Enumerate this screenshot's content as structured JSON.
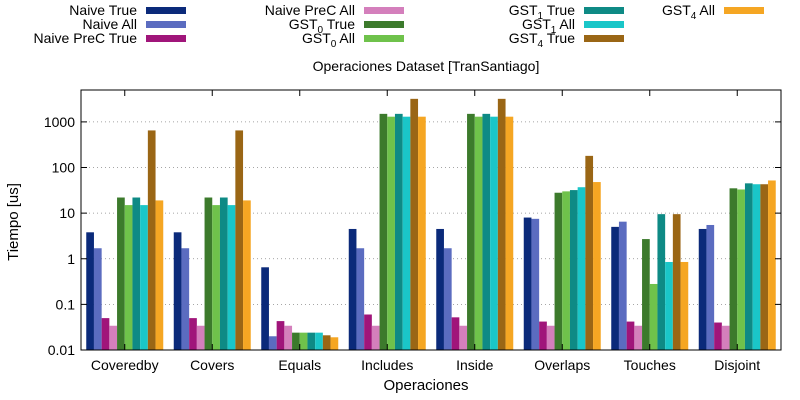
{
  "chart_data": {
    "type": "bar",
    "title": "Operaciones Dataset [TranSantiago]",
    "xlabel": "Operaciones",
    "ylabel": "Tiempo [us]",
    "yscale": "log",
    "ylim": [
      0.01,
      5000
    ],
    "grid": "horizontal dotted",
    "legend_position": "top",
    "categories": [
      "Coveredby",
      "Covers",
      "Equals",
      "Includes",
      "Inside",
      "Overlaps",
      "Touches",
      "Disjoint"
    ],
    "y_ticks": [
      0.01,
      0.1,
      1,
      10,
      100,
      1000
    ],
    "y_tick_labels": [
      "0.01",
      "0.1",
      "1",
      "10",
      "100",
      "1000"
    ],
    "series": [
      {
        "name": "Naive True",
        "label_main": "Naive True",
        "label_sub": "",
        "label_tail": "",
        "color": "#0b2a7a",
        "values": [
          3.8,
          3.8,
          0.65,
          4.5,
          4.5,
          8.0,
          5.0,
          4.5
        ]
      },
      {
        "name": "Naive All",
        "label_main": "Naive All",
        "label_sub": "",
        "label_tail": "",
        "color": "#5b6cc0",
        "values": [
          1.7,
          1.7,
          0.02,
          1.7,
          1.7,
          7.5,
          6.5,
          5.5
        ]
      },
      {
        "name": "Naive PreC True",
        "label_main": "Naive PreC True",
        "label_sub": "",
        "label_tail": "",
        "color": "#a0157a",
        "values": [
          0.05,
          0.05,
          0.043,
          0.06,
          0.052,
          0.042,
          0.042,
          0.04
        ]
      },
      {
        "name": "Naive PreC All",
        "label_main": "Naive PreC All",
        "label_sub": "",
        "label_tail": "",
        "color": "#d47fbc",
        "values": [
          0.034,
          0.034,
          0.034,
          0.034,
          0.034,
          0.034,
          0.034,
          0.034
        ]
      },
      {
        "name": "GST0 True",
        "label_main": "GST",
        "label_sub": "0",
        "label_tail": " True",
        "color": "#3c7a2c",
        "values": [
          22,
          22,
          0.024,
          1500,
          1500,
          28,
          2.7,
          35
        ]
      },
      {
        "name": "GST0 All",
        "label_main": "GST",
        "label_sub": "0",
        "label_tail": " All",
        "color": "#6fc24b",
        "values": [
          15,
          15,
          0.024,
          1300,
          1300,
          30,
          0.28,
          33
        ]
      },
      {
        "name": "GST1 True",
        "label_main": "GST",
        "label_sub": "1",
        "label_tail": " True",
        "color": "#0e8a85",
        "values": [
          22,
          22,
          0.024,
          1500,
          1500,
          32,
          9.5,
          45
        ]
      },
      {
        "name": "GST1 All",
        "label_main": "GST",
        "label_sub": "1",
        "label_tail": " All",
        "color": "#1ac6c8",
        "values": [
          15,
          15,
          0.024,
          1300,
          1300,
          37,
          0.85,
          43
        ]
      },
      {
        "name": "GST4 True",
        "label_main": "GST",
        "label_sub": "4",
        "label_tail": " True",
        "color": "#9a6615",
        "values": [
          650,
          650,
          0.021,
          3200,
          3200,
          180,
          9.5,
          43
        ]
      },
      {
        "name": "GST4 All",
        "label_main": "GST",
        "label_sub": "4",
        "label_tail": " All",
        "color": "#f5a623",
        "values": [
          19,
          19,
          0.019,
          1300,
          1300,
          48,
          0.85,
          52
        ]
      }
    ]
  }
}
